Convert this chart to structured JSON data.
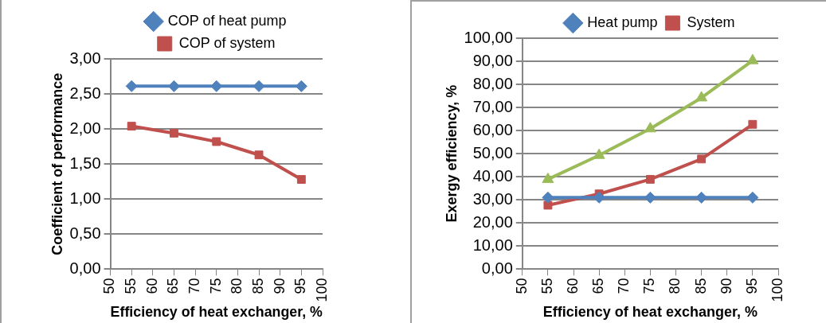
{
  "chart_data": [
    {
      "type": "line",
      "xlabel": "Efficiency of heat exchanger, %",
      "ylabel": "Coefficient of performance",
      "x": [
        55,
        65,
        75,
        85,
        95
      ],
      "series": [
        {
          "name": "COP of heat pump",
          "color": "#4f81bd",
          "marker": "diamond",
          "values": [
            2.61,
            2.61,
            2.61,
            2.61,
            2.61
          ]
        },
        {
          "name": "COP of system",
          "color": "#c0504d",
          "marker": "square",
          "values": [
            2.04,
            1.94,
            1.82,
            1.63,
            1.28
          ]
        }
      ],
      "xlim": [
        50,
        100
      ],
      "xticks": [
        50,
        55,
        60,
        65,
        70,
        75,
        80,
        85,
        90,
        95,
        100
      ],
      "ylim": [
        0,
        3
      ],
      "yticks": [
        {
          "value": 0,
          "label": "0,00"
        },
        {
          "value": 0.5,
          "label": "0,50"
        },
        {
          "value": 1,
          "label": "1,00"
        },
        {
          "value": 1.5,
          "label": "1,50"
        },
        {
          "value": 2,
          "label": "2,00"
        },
        {
          "value": 2.5,
          "label": "2,50"
        },
        {
          "value": 3,
          "label": "3,00"
        }
      ],
      "grid": "y",
      "legend": "top",
      "line_style": "solid"
    },
    {
      "type": "line",
      "xlabel": "Efficiency of heat exchanger, %",
      "ylabel": "Exergy efficiency, %",
      "x": [
        55,
        65,
        75,
        85,
        95
      ],
      "series": [
        {
          "name": "Heat pump",
          "color": "#4f81bd",
          "marker": "diamond",
          "values": [
            31.0,
            31.0,
            31.0,
            31.0,
            31.0
          ]
        },
        {
          "name": "System",
          "color": "#c0504d",
          "marker": "square",
          "values": [
            27.7,
            32.6,
            38.9,
            47.7,
            62.7
          ]
        },
        {
          "color": "#9bbb59",
          "marker": "triangle",
          "values": [
            38.9,
            49.3,
            60.8,
            74.2,
            90.3
          ]
        }
      ],
      "xlim": [
        50,
        100
      ],
      "xticks": [
        50,
        55,
        60,
        65,
        70,
        75,
        80,
        85,
        90,
        95,
        100
      ],
      "ylim": [
        0,
        100
      ],
      "yticks": [
        {
          "value": 0,
          "label": "0,00"
        },
        {
          "value": 10,
          "label": "10,00"
        },
        {
          "value": 20,
          "label": "20,00"
        },
        {
          "value": 30,
          "label": "30,00"
        },
        {
          "value": 40,
          "label": "40,00"
        },
        {
          "value": 50,
          "label": "50,00"
        },
        {
          "value": 60,
          "label": "60,00"
        },
        {
          "value": 70,
          "label": "70,00"
        },
        {
          "value": 80,
          "label": "80,00"
        },
        {
          "value": 90,
          "label": "90,00"
        },
        {
          "value": 100,
          "label": "100,00"
        }
      ],
      "grid": "y",
      "legend": "top",
      "line_style": "solid"
    }
  ]
}
